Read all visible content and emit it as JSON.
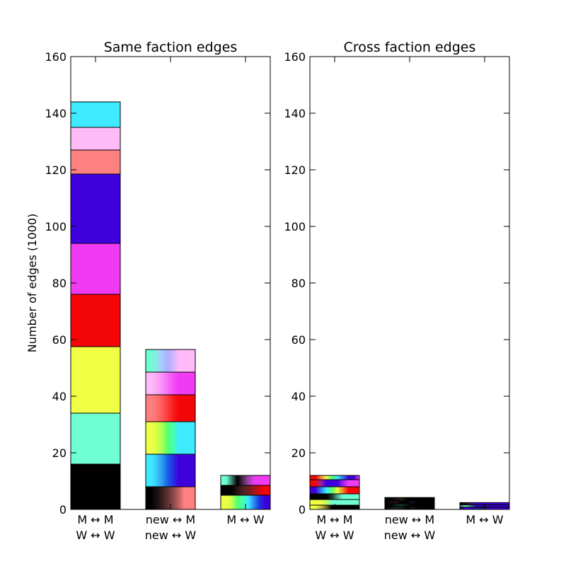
{
  "chart_data": {
    "type": "bar",
    "stacked": true,
    "ylabel": "Number of edges (1000)",
    "ylim": [
      0,
      160
    ],
    "yticks": [
      0,
      20,
      40,
      60,
      80,
      100,
      120,
      140,
      160
    ],
    "grid": false,
    "categories": [
      "M ↔ M\nW ↔ W",
      "new ↔ M\nnew ↔ W",
      "M ↔ W"
    ],
    "panels": [
      {
        "title": "Same faction edges",
        "bars": [
          {
            "category": "M ↔ M\nW ↔ W",
            "segments": [
              {
                "value": 16,
                "colors": [
                  "#000000"
                ]
              },
              {
                "value": 18,
                "colors": [
                  "#6effd2"
                ]
              },
              {
                "value": 23.5,
                "colors": [
                  "#eeff44"
                ]
              },
              {
                "value": 18.5,
                "colors": [
                  "#f40606"
                ]
              },
              {
                "value": 18,
                "colors": [
                  "#f03af4"
                ]
              },
              {
                "value": 24.5,
                "colors": [
                  "#3f00de"
                ]
              },
              {
                "value": 8.5,
                "colors": [
                  "#ff8080"
                ]
              },
              {
                "value": 8,
                "colors": [
                  "#ffbbf8"
                ]
              },
              {
                "value": 9,
                "colors": [
                  "#3deaff"
                ]
              }
            ]
          },
          {
            "category": "new ↔ M\nnew ↔ W",
            "segments": [
              {
                "value": 8,
                "colors": [
                  "#000000",
                  "#000000",
                  "#1a0f0f",
                  "#3a1f1f",
                  "#5e3333",
                  "#8c4848",
                  "#c06060",
                  "#ff8080",
                  "#ff8080",
                  "#ff8080"
                ]
              },
              {
                "value": 11.5,
                "colors": [
                  "#3deaff",
                  "#3deaff",
                  "#38c8f8",
                  "#2c9bf0",
                  "#1a5ee8",
                  "#2430e0",
                  "#3f00de",
                  "#3f00de",
                  "#3f00de",
                  "#3f00de"
                ]
              },
              {
                "value": 11.5,
                "colors": [
                  "#eeff44",
                  "#eeff44",
                  "#d8ff48",
                  "#a8ff55",
                  "#55ff70",
                  "#44ffb0",
                  "#3deaff",
                  "#3deaff",
                  "#3deaff",
                  "#3deaff"
                ]
              },
              {
                "value": 9.5,
                "colors": [
                  "#ff8080",
                  "#ff8080",
                  "#ff7070",
                  "#ff5858",
                  "#ff3a3a",
                  "#f81c1c",
                  "#f40606",
                  "#f40606",
                  "#f40606",
                  "#f40606"
                ]
              },
              {
                "value": 8,
                "colors": [
                  "#ffbbf8",
                  "#ffbbf8",
                  "#fca8f8",
                  "#f98ef7",
                  "#f670f6",
                  "#f350f5",
                  "#f03af4",
                  "#f03af4",
                  "#f03af4",
                  "#f03af4"
                ]
              },
              {
                "value": 8,
                "colors": [
                  "#6effd2",
                  "#6effd2",
                  "#8ee6e6",
                  "#a8c8ff",
                  "#a8b0ff",
                  "#d0b4ff",
                  "#ffbbf8",
                  "#ffbbf8",
                  "#ffbbf8",
                  "#ffbbf8"
                ]
              }
            ]
          },
          {
            "category": "M ↔ W",
            "segments": [
              {
                "value": 5,
                "colors": [
                  "#eeff44",
                  "#eeff44",
                  "#c8ff4a",
                  "#55ff70",
                  "#44ffb0",
                  "#3deaff",
                  "#2a8af0",
                  "#1a38e2",
                  "#3f00de",
                  "#3f00de"
                ]
              },
              {
                "value": 3.5,
                "colors": [
                  "#000000",
                  "#000000",
                  "#000000",
                  "#2a1212",
                  "#4a2222",
                  "#6a2020",
                  "#a01818",
                  "#d00c0c",
                  "#f40606",
                  "#f40606"
                ]
              },
              {
                "value": 3.5,
                "colors": [
                  "#6effd2",
                  "#6effd2",
                  "#3a8070",
                  "#000000",
                  "#4a2a4a",
                  "#a040a8",
                  "#e040ee",
                  "#f03af4",
                  "#f03af4",
                  "#f03af4"
                ]
              }
            ]
          }
        ]
      },
      {
        "title": "Cross faction edges",
        "bars": [
          {
            "category": "M ↔ M\nW ↔ W",
            "segments": [
              {
                "value": 1.5,
                "colors": [
                  "#eeff44",
                  "#eeff44",
                  "#c8c040",
                  "#7a6a28",
                  "#000000",
                  "#000000",
                  "#000000",
                  "#000000",
                  "#000000",
                  "#000000"
                ]
              },
              {
                "value": 2,
                "colors": [
                  "#eeff44",
                  "#eeff44",
                  "#eeff44",
                  "#c0ff60",
                  "#6effd2",
                  "#6effd2",
                  "#6effd2",
                  "#6effd2",
                  "#6effd2",
                  "#6effd2"
                ]
              },
              {
                "value": 2,
                "colors": [
                  "#000000",
                  "#000000",
                  "#000000",
                  "#000000",
                  "#1a3a30",
                  "#4aa890",
                  "#6effd2",
                  "#6effd2",
                  "#6effd2",
                  "#6effd2"
                ]
              },
              {
                "value": 2.5,
                "colors": [
                  "#3f00de",
                  "#3f00de",
                  "#2a80f0",
                  "#3deaff",
                  "#55ff70",
                  "#eeff44",
                  "#f88020",
                  "#f40606",
                  "#f40606",
                  "#f40606"
                ]
              },
              {
                "value": 2.5,
                "colors": [
                  "#f40606",
                  "#f40606",
                  "#a020a0",
                  "#3f00de",
                  "#3f00de",
                  "#3f00de",
                  "#9a20e8",
                  "#f03af4",
                  "#f03af4",
                  "#f03af4"
                ]
              },
              {
                "value": 1.5,
                "colors": [
                  "#f40606",
                  "#f40606",
                  "#ff8040",
                  "#eeff44",
                  "#55ff70",
                  "#3deaff",
                  "#2a80f0",
                  "#3f00de",
                  "#3f00de",
                  "#f03af4"
                ]
              }
            ]
          },
          {
            "category": "new ↔ M\nnew ↔ W",
            "segments": [
              {
                "value": 1,
                "colors": [
                  "#000000",
                  "#101010",
                  "#202a20",
                  "#1a1a30",
                  "#000000",
                  "#101818",
                  "#000000",
                  "#000000",
                  "#000000",
                  "#000000"
                ]
              },
              {
                "value": 1,
                "colors": [
                  "#000000",
                  "#000000",
                  "#0a2a10",
                  "#103a20",
                  "#0a1a10",
                  "#000000",
                  "#000000",
                  "#000000",
                  "#000000",
                  "#000000"
                ]
              },
              {
                "value": 1,
                "colors": [
                  "#000000",
                  "#1a0a0a",
                  "#2a0a20",
                  "#000000",
                  "#000000",
                  "#10102a",
                  "#000000",
                  "#000000",
                  "#000000",
                  "#000000"
                ]
              },
              {
                "value": 1.2,
                "colors": [
                  "#000000",
                  "#000000",
                  "#101010",
                  "#2a2020",
                  "#000000",
                  "#000000",
                  "#000000",
                  "#000000",
                  "#000000",
                  "#000000"
                ]
              }
            ]
          },
          {
            "category": "M ↔ W",
            "segments": [
              {
                "value": 0.8,
                "colors": [
                  "#2a0060",
                  "#3f00de",
                  "#3f00de",
                  "#2a20a0",
                  "#1a1a60",
                  "#3f00de",
                  "#3f00de",
                  "#3f00de",
                  "#3f00de",
                  "#3f00de"
                ]
              },
              {
                "value": 0.8,
                "colors": [
                  "#3a8070",
                  "#6effd2",
                  "#4a9a9a",
                  "#3f00de",
                  "#3f00de",
                  "#2a1a80",
                  "#3f00de",
                  "#3f00de",
                  "#3f00de",
                  "#3f00de"
                ]
              },
              {
                "value": 0.8,
                "colors": [
                  "#000000",
                  "#101010",
                  "#3a1a50",
                  "#3f00de",
                  "#3f00de",
                  "#3f00de",
                  "#3f00de",
                  "#3f00de",
                  "#3f00de",
                  "#3f00de"
                ]
              }
            ]
          }
        ]
      }
    ]
  }
}
